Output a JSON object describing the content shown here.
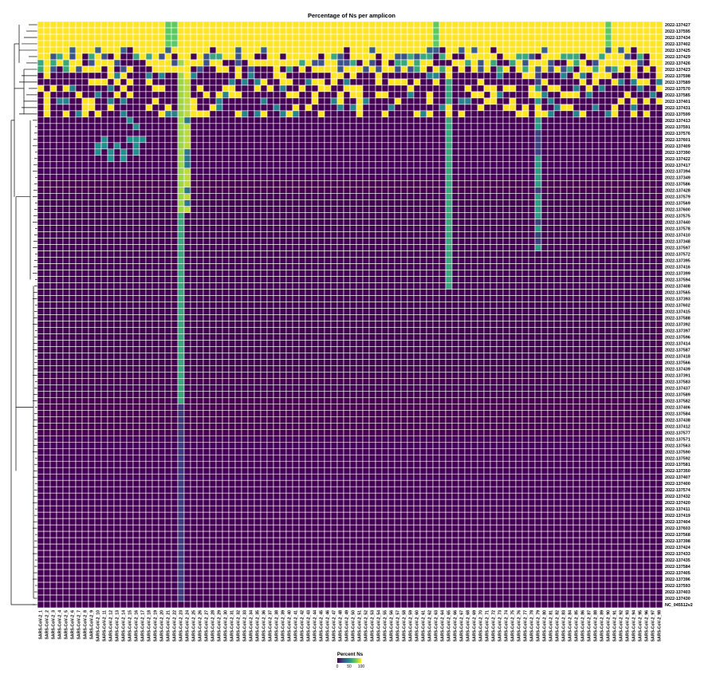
{
  "chart_data": {
    "type": "heatmap",
    "title": "Percentage of Ns per amplicon",
    "legend": {
      "title": "Percent Ns",
      "ticks": [
        "0",
        "50",
        "100"
      ],
      "placement": "bottom-center"
    },
    "colorscale": [
      "#440154",
      "#3b528b",
      "#21918c",
      "#5ec962",
      "#fde725"
    ],
    "value_range": [
      0,
      100
    ],
    "column_prefix": "SARS-CoV-2_",
    "n_columns": 98,
    "rows": [
      "2022-137427",
      "2022-137595",
      "2022-137434",
      "2022-137402",
      "2022-137425",
      "2022-137429",
      "2022-137426",
      "2022-137423",
      "2022-137598",
      "2022-137589",
      "2022-137570",
      "2022-137585",
      "2022-137401",
      "2022-137431",
      "2022-137599",
      "2022-137413",
      "2022-137591",
      "2022-137576",
      "2022-137601",
      "2022-137409",
      "2022-137390",
      "2022-137422",
      "2022-137417",
      "2022-137394",
      "2022-137349",
      "2022-137586",
      "2022-137428",
      "2022-137579",
      "2022-137569",
      "2022-137600",
      "2022-137575",
      "2022-137440",
      "2022-137578",
      "2022-137410",
      "2022-137348",
      "2022-137597",
      "2022-137572",
      "2022-137395",
      "2022-137416",
      "2022-137399",
      "2022-137594",
      "2022-137408",
      "2022-137565",
      "2022-137393",
      "2022-137602",
      "2022-137415",
      "2022-137588",
      "2022-137392",
      "2022-137397",
      "2022-137596",
      "2022-137414",
      "2022-137587",
      "2022-137418",
      "2022-137566",
      "2022-137439",
      "2022-137391",
      "2022-137583",
      "2022-137437",
      "2022-137589",
      "2022-137582",
      "2022-137406",
      "2022-137584",
      "2022-137438",
      "2022-137412",
      "2022-137577",
      "2022-137571",
      "2022-137563",
      "2022-137590",
      "2022-137592",
      "2022-137581",
      "2022-137350",
      "2022-137407",
      "2022-137400",
      "2022-137574",
      "2022-137432",
      "2022-137420",
      "2022-137411",
      "2022-137419",
      "2022-137404",
      "2022-137603",
      "2022-137568",
      "2022-137398",
      "2022-137424",
      "2022-137433",
      "2022-137435",
      "2022-137584",
      "2022-137405",
      "2022-137396",
      "2022-137593",
      "2022-137403",
      "2022-137430",
      "NC_045512v2"
    ]
  }
}
